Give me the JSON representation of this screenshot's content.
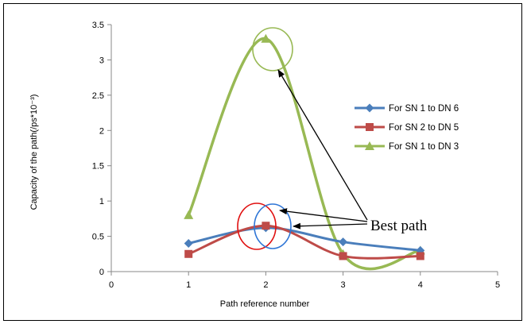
{
  "chart_data": {
    "type": "line",
    "xlabel": "Path reference number",
    "ylabel": "Capacity of the path(/ps*10⁻³)",
    "xlim": [
      0,
      5
    ],
    "ylim": [
      0,
      3.5
    ],
    "xticks": [
      "0",
      "1",
      "2",
      "3",
      "4",
      "5"
    ],
    "yticks": [
      "0",
      "0.5",
      "1",
      "1.5",
      "2",
      "2.5",
      "3",
      "3.5"
    ],
    "grid": false,
    "legend_position": "right",
    "smoothed": true,
    "x": [
      1,
      2,
      3,
      4
    ],
    "series": [
      {
        "name": "For SN 1 to DN 6",
        "values": [
          0.4,
          0.62,
          0.42,
          0.3
        ],
        "color": "#4a7ebb",
        "marker": "diamond"
      },
      {
        "name": "For SN 2 to DN 5",
        "values": [
          0.25,
          0.65,
          0.22,
          0.22
        ],
        "color": "#be4b48",
        "marker": "square"
      },
      {
        "name": "For SN 1 to DN 3",
        "values": [
          0.8,
          3.3,
          0.25,
          0.3
        ],
        "color": "#98b954",
        "marker": "triangle"
      }
    ],
    "annotations": {
      "best_path_label": "Best path"
    }
  }
}
